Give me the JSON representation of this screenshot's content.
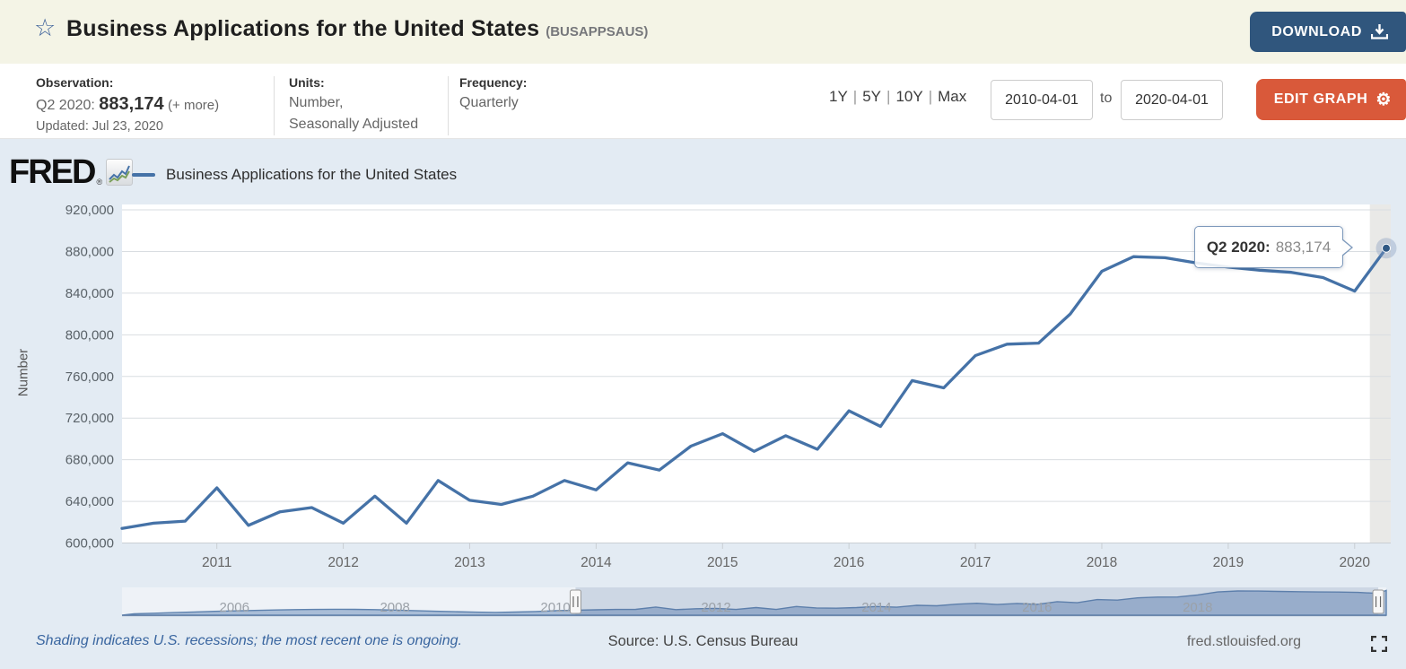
{
  "header": {
    "title": "Business Applications for the United States",
    "ticker": "(BUSAPPSAUS)",
    "download_label": "DOWNLOAD",
    "star_icon": "star-outline"
  },
  "toolbar": {
    "observation_label": "Observation:",
    "observation_period": "Q2 2020:",
    "observation_value": "883,174",
    "observation_more": "(+ more)",
    "updated": "Updated: Jul 23, 2020",
    "units_label": "Units:",
    "units_line1": "Number,",
    "units_line2": "Seasonally Adjusted",
    "frequency_label": "Frequency:",
    "frequency_value": "Quarterly",
    "ranges": [
      "1Y",
      "5Y",
      "10Y",
      "Max"
    ],
    "range_separator": "|",
    "date_from": "2010-04-01",
    "to_label": "to",
    "date_to": "2020-04-01",
    "edit_graph_label": "EDIT GRAPH",
    "gear_icon": "gear"
  },
  "chart": {
    "brand": "FRED",
    "registered_mark": "®",
    "legend_label": "Business Applications for the United States",
    "tooltip": {
      "period": "Q2 2020:",
      "value": "883,174"
    }
  },
  "chart_data": {
    "type": "line",
    "title": "Business Applications for the United States",
    "ylabel": "Number",
    "frequency": "quarterly",
    "x_start": "2010-Q2",
    "xlim": [
      2010.25,
      2020.25
    ],
    "ylim": [
      600000,
      920000
    ],
    "ytick_step": 40000,
    "ytick_labels": [
      "600,000",
      "640,000",
      "680,000",
      "720,000",
      "760,000",
      "800,000",
      "840,000",
      "880,000",
      "920,000"
    ],
    "xticks": [
      2011,
      2012,
      2013,
      2014,
      2015,
      2016,
      2017,
      2018,
      2019,
      2020
    ],
    "values": [
      614000,
      619000,
      621000,
      653000,
      617000,
      630000,
      634000,
      619000,
      645000,
      619000,
      660000,
      641000,
      637000,
      645000,
      660000,
      651000,
      677000,
      670000,
      693000,
      705000,
      688000,
      703000,
      690000,
      727000,
      712000,
      756000,
      749000,
      780000,
      791000,
      792000,
      820000,
      861000,
      875000,
      874000,
      869000,
      865000,
      862000,
      860000,
      855000,
      842000,
      883174
    ],
    "last_point": {
      "label": "Q2 2020",
      "value": 883174
    },
    "recession_band_start": 2020.12,
    "navigator": {
      "x_start": "2004-Q3",
      "xlim": [
        2004.6,
        2020.35
      ],
      "frequency": "quarterly",
      "values": [
        558000,
        567000,
        576000,
        585000,
        593000,
        600000,
        606000,
        612000,
        617000,
        620000,
        622000,
        621000,
        617000,
        611000,
        603000,
        595000,
        588000,
        582000,
        579000,
        583000,
        591000,
        602000,
        610000,
        614000,
        619000,
        621000,
        653000,
        617000,
        630000,
        634000,
        619000,
        645000,
        619000,
        660000,
        641000,
        637000,
        645000,
        660000,
        651000,
        677000,
        670000,
        693000,
        705000,
        688000,
        703000,
        690000,
        727000,
        712000,
        756000,
        749000,
        780000,
        791000,
        792000,
        820000,
        861000,
        875000,
        874000,
        869000,
        865000,
        862000,
        860000,
        855000,
        842000,
        883174
      ],
      "xticks": [
        2006,
        2008,
        2010,
        2012,
        2014,
        2016,
        2018
      ],
      "selected_range": [
        2010.25,
        2020.25
      ]
    }
  },
  "footer": {
    "recession_note": "Shading indicates U.S. recessions; the most recent one is ongoing.",
    "source": "Source: U.S. Census Bureau",
    "site": "fred.stlouisfed.org",
    "fullscreen_icon": "fullscreen"
  },
  "colors": {
    "line": "#4572a7",
    "download_button": "#30567d",
    "edit_button": "#d9593a",
    "header_bg": "#f4f4e6",
    "chart_bg": "#e3ebf3",
    "plot_bg": "#ffffff",
    "recession_band": "#e9e9e7",
    "gridline": "#d9dde1",
    "nav_fill": "#a9bdd7",
    "link": "#3a66a0"
  }
}
